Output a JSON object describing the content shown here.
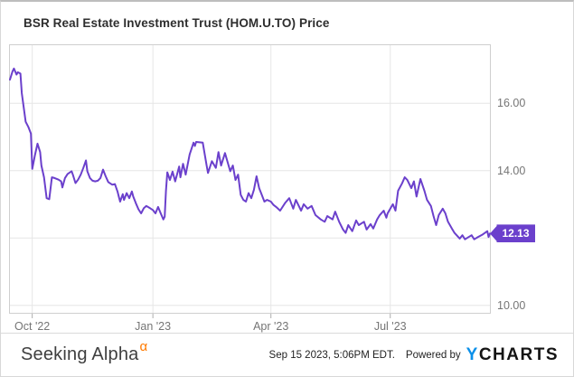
{
  "title": "BSR Real Estate Investment Trust (HOM.U.TO) Price",
  "badge": {
    "label": "12.13"
  },
  "colors": {
    "line": "#6b40cc",
    "badge": "#6b40cc",
    "grid": "#e6e6e6",
    "plot_border": "#cfcfcf",
    "tick": "#adadad",
    "axis_text": "#757575",
    "title_text": "#2e2e2e",
    "ycharts_blue": "#0a8fe9",
    "alpha_orange": "#ff7a00"
  },
  "footer": {
    "brand": "Seeking Alpha",
    "brand_sup": "α",
    "timestamp": "Sep 15 2023, 5:06PM EDT.",
    "powered_by": "Powered by",
    "ycharts_y": "Y",
    "ycharts_rest": "CHARTS"
  },
  "chart_data": {
    "type": "line",
    "title": "BSR Real Estate Investment Trust (HOM.U.TO) Price",
    "xlabel": "",
    "ylabel": "",
    "legend": "none",
    "grid": "on",
    "x_domain": [
      "2022-09-14",
      "2023-09-15"
    ],
    "ylim": [
      9.75,
      17.75
    ],
    "y_gridlines": [
      16,
      14,
      12,
      10
    ],
    "y_ticks": [
      {
        "label": "16.00",
        "value": 16
      },
      {
        "label": "14.00",
        "value": 14
      },
      {
        "label": "10.00",
        "value": 10
      }
    ],
    "x_ticks": [
      {
        "label": "Oct '22",
        "date": "2022-10-01"
      },
      {
        "label": "Jan '23",
        "date": "2023-01-01"
      },
      {
        "label": "Apr '23",
        "date": "2023-04-01"
      },
      {
        "label": "Jul '23",
        "date": "2023-07-01"
      }
    ],
    "last_value": 12.13,
    "series": [
      {
        "name": "HOM.U.TO Price",
        "color": "#6b40cc",
        "points": [
          [
            "2022-09-14",
            16.7
          ],
          [
            "2022-09-16",
            16.95
          ],
          [
            "2022-09-17",
            17.03
          ],
          [
            "2022-09-19",
            16.85
          ],
          [
            "2022-09-20",
            16.92
          ],
          [
            "2022-09-22",
            16.88
          ],
          [
            "2022-09-23",
            16.3
          ],
          [
            "2022-09-26",
            15.45
          ],
          [
            "2022-09-28",
            15.3
          ],
          [
            "2022-09-30",
            15.1
          ],
          [
            "2022-10-01",
            14.05
          ],
          [
            "2022-10-03",
            14.45
          ],
          [
            "2022-10-05",
            14.8
          ],
          [
            "2022-10-07",
            14.55
          ],
          [
            "2022-10-08",
            14.15
          ],
          [
            "2022-10-10",
            13.8
          ],
          [
            "2022-10-12",
            13.18
          ],
          [
            "2022-10-14",
            13.15
          ],
          [
            "2022-10-16",
            13.8
          ],
          [
            "2022-10-18",
            13.78
          ],
          [
            "2022-10-21",
            13.73
          ],
          [
            "2022-10-23",
            13.68
          ],
          [
            "2022-10-24",
            13.5
          ],
          [
            "2022-10-26",
            13.78
          ],
          [
            "2022-10-28",
            13.9
          ],
          [
            "2022-10-31",
            13.98
          ],
          [
            "2022-11-01",
            13.88
          ],
          [
            "2022-11-03",
            13.63
          ],
          [
            "2022-11-05",
            13.73
          ],
          [
            "2022-11-07",
            13.88
          ],
          [
            "2022-11-09",
            14.08
          ],
          [
            "2022-11-11",
            14.3
          ],
          [
            "2022-11-12",
            13.98
          ],
          [
            "2022-11-14",
            13.78
          ],
          [
            "2022-11-16",
            13.7
          ],
          [
            "2022-11-18",
            13.68
          ],
          [
            "2022-11-20",
            13.7
          ],
          [
            "2022-11-22",
            13.78
          ],
          [
            "2022-11-24",
            14.03
          ],
          [
            "2022-11-26",
            13.83
          ],
          [
            "2022-11-28",
            13.66
          ],
          [
            "2022-12-01",
            13.58
          ],
          [
            "2022-12-03",
            13.6
          ],
          [
            "2022-12-05",
            13.38
          ],
          [
            "2022-12-06",
            13.23
          ],
          [
            "2022-12-07",
            13.08
          ],
          [
            "2022-12-09",
            13.3
          ],
          [
            "2022-12-10",
            13.13
          ],
          [
            "2022-12-12",
            13.33
          ],
          [
            "2022-12-14",
            13.18
          ],
          [
            "2022-12-16",
            13.38
          ],
          [
            "2022-12-17",
            13.23
          ],
          [
            "2022-12-19",
            13.03
          ],
          [
            "2022-12-21",
            12.85
          ],
          [
            "2022-12-23",
            12.73
          ],
          [
            "2022-12-25",
            12.88
          ],
          [
            "2022-12-27",
            12.95
          ],
          [
            "2022-12-30",
            12.88
          ],
          [
            "2023-01-01",
            12.83
          ],
          [
            "2023-01-03",
            12.73
          ],
          [
            "2023-01-05",
            12.92
          ],
          [
            "2023-01-07",
            12.73
          ],
          [
            "2023-01-09",
            12.55
          ],
          [
            "2023-01-10",
            12.63
          ],
          [
            "2023-01-11",
            13.4
          ],
          [
            "2023-01-12",
            13.95
          ],
          [
            "2023-01-14",
            13.72
          ],
          [
            "2023-01-16",
            13.97
          ],
          [
            "2023-01-18",
            13.68
          ],
          [
            "2023-01-21",
            14.12
          ],
          [
            "2023-01-22",
            13.8
          ],
          [
            "2023-01-24",
            14.2
          ],
          [
            "2023-01-26",
            13.88
          ],
          [
            "2023-01-29",
            14.48
          ],
          [
            "2023-02-01",
            14.83
          ],
          [
            "2023-02-02",
            14.73
          ],
          [
            "2023-02-03",
            14.85
          ],
          [
            "2023-02-08",
            14.83
          ],
          [
            "2023-02-11",
            14.15
          ],
          [
            "2023-02-12",
            13.93
          ],
          [
            "2023-02-15",
            14.28
          ],
          [
            "2023-02-18",
            14.08
          ],
          [
            "2023-02-20",
            14.55
          ],
          [
            "2023-02-22",
            14.15
          ],
          [
            "2023-02-25",
            14.52
          ],
          [
            "2023-03-01",
            13.98
          ],
          [
            "2023-03-03",
            14.15
          ],
          [
            "2023-03-05",
            13.72
          ],
          [
            "2023-03-07",
            13.88
          ],
          [
            "2023-03-09",
            13.28
          ],
          [
            "2023-03-11",
            13.13
          ],
          [
            "2023-03-13",
            13.08
          ],
          [
            "2023-03-15",
            13.33
          ],
          [
            "2023-03-17",
            13.18
          ],
          [
            "2023-03-19",
            13.43
          ],
          [
            "2023-03-21",
            13.83
          ],
          [
            "2023-03-23",
            13.48
          ],
          [
            "2023-03-25",
            13.28
          ],
          [
            "2023-03-27",
            13.08
          ],
          [
            "2023-03-29",
            13.13
          ],
          [
            "2023-04-01",
            13.08
          ],
          [
            "2023-04-03",
            12.98
          ],
          [
            "2023-04-05",
            12.92
          ],
          [
            "2023-04-08",
            12.81
          ],
          [
            "2023-04-12",
            13.05
          ],
          [
            "2023-04-15",
            13.18
          ],
          [
            "2023-04-18",
            12.87
          ],
          [
            "2023-04-20",
            13.13
          ],
          [
            "2023-04-24",
            12.81
          ],
          [
            "2023-04-26",
            13.0
          ],
          [
            "2023-04-29",
            12.87
          ],
          [
            "2023-05-02",
            12.95
          ],
          [
            "2023-05-05",
            12.68
          ],
          [
            "2023-05-09",
            12.55
          ],
          [
            "2023-05-12",
            12.48
          ],
          [
            "2023-05-14",
            12.65
          ],
          [
            "2023-05-18",
            12.55
          ],
          [
            "2023-05-20",
            12.78
          ],
          [
            "2023-05-23",
            12.48
          ],
          [
            "2023-05-26",
            12.25
          ],
          [
            "2023-05-28",
            12.15
          ],
          [
            "2023-05-30",
            12.38
          ],
          [
            "2023-06-02",
            12.2
          ],
          [
            "2023-06-05",
            12.52
          ],
          [
            "2023-06-07",
            12.38
          ],
          [
            "2023-06-11",
            12.48
          ],
          [
            "2023-06-13",
            12.25
          ],
          [
            "2023-06-16",
            12.41
          ],
          [
            "2023-06-18",
            12.28
          ],
          [
            "2023-06-21",
            12.55
          ],
          [
            "2023-06-23",
            12.68
          ],
          [
            "2023-06-26",
            12.81
          ],
          [
            "2023-06-28",
            12.6
          ],
          [
            "2023-06-29",
            12.73
          ],
          [
            "2023-07-03",
            13.0
          ],
          [
            "2023-07-05",
            12.81
          ],
          [
            "2023-07-07",
            13.4
          ],
          [
            "2023-07-10",
            13.62
          ],
          [
            "2023-07-12",
            13.8
          ],
          [
            "2023-07-14",
            13.72
          ],
          [
            "2023-07-17",
            13.48
          ],
          [
            "2023-07-19",
            13.68
          ],
          [
            "2023-07-21",
            13.23
          ],
          [
            "2023-07-24",
            13.75
          ],
          [
            "2023-07-27",
            13.4
          ],
          [
            "2023-07-29",
            13.13
          ],
          [
            "2023-08-01",
            12.95
          ],
          [
            "2023-08-03",
            12.65
          ],
          [
            "2023-08-05",
            12.38
          ],
          [
            "2023-08-07",
            12.68
          ],
          [
            "2023-08-10",
            12.87
          ],
          [
            "2023-08-12",
            12.73
          ],
          [
            "2023-08-14",
            12.48
          ],
          [
            "2023-08-17",
            12.28
          ],
          [
            "2023-08-19",
            12.15
          ],
          [
            "2023-08-23",
            11.98
          ],
          [
            "2023-08-25",
            12.08
          ],
          [
            "2023-08-27",
            11.96
          ],
          [
            "2023-09-01",
            12.08
          ],
          [
            "2023-09-03",
            11.96
          ],
          [
            "2023-09-06",
            12.03
          ],
          [
            "2023-09-09",
            12.09
          ],
          [
            "2023-09-13",
            12.2
          ],
          [
            "2023-09-14",
            12.03
          ],
          [
            "2023-09-15",
            12.13
          ]
        ]
      }
    ]
  }
}
